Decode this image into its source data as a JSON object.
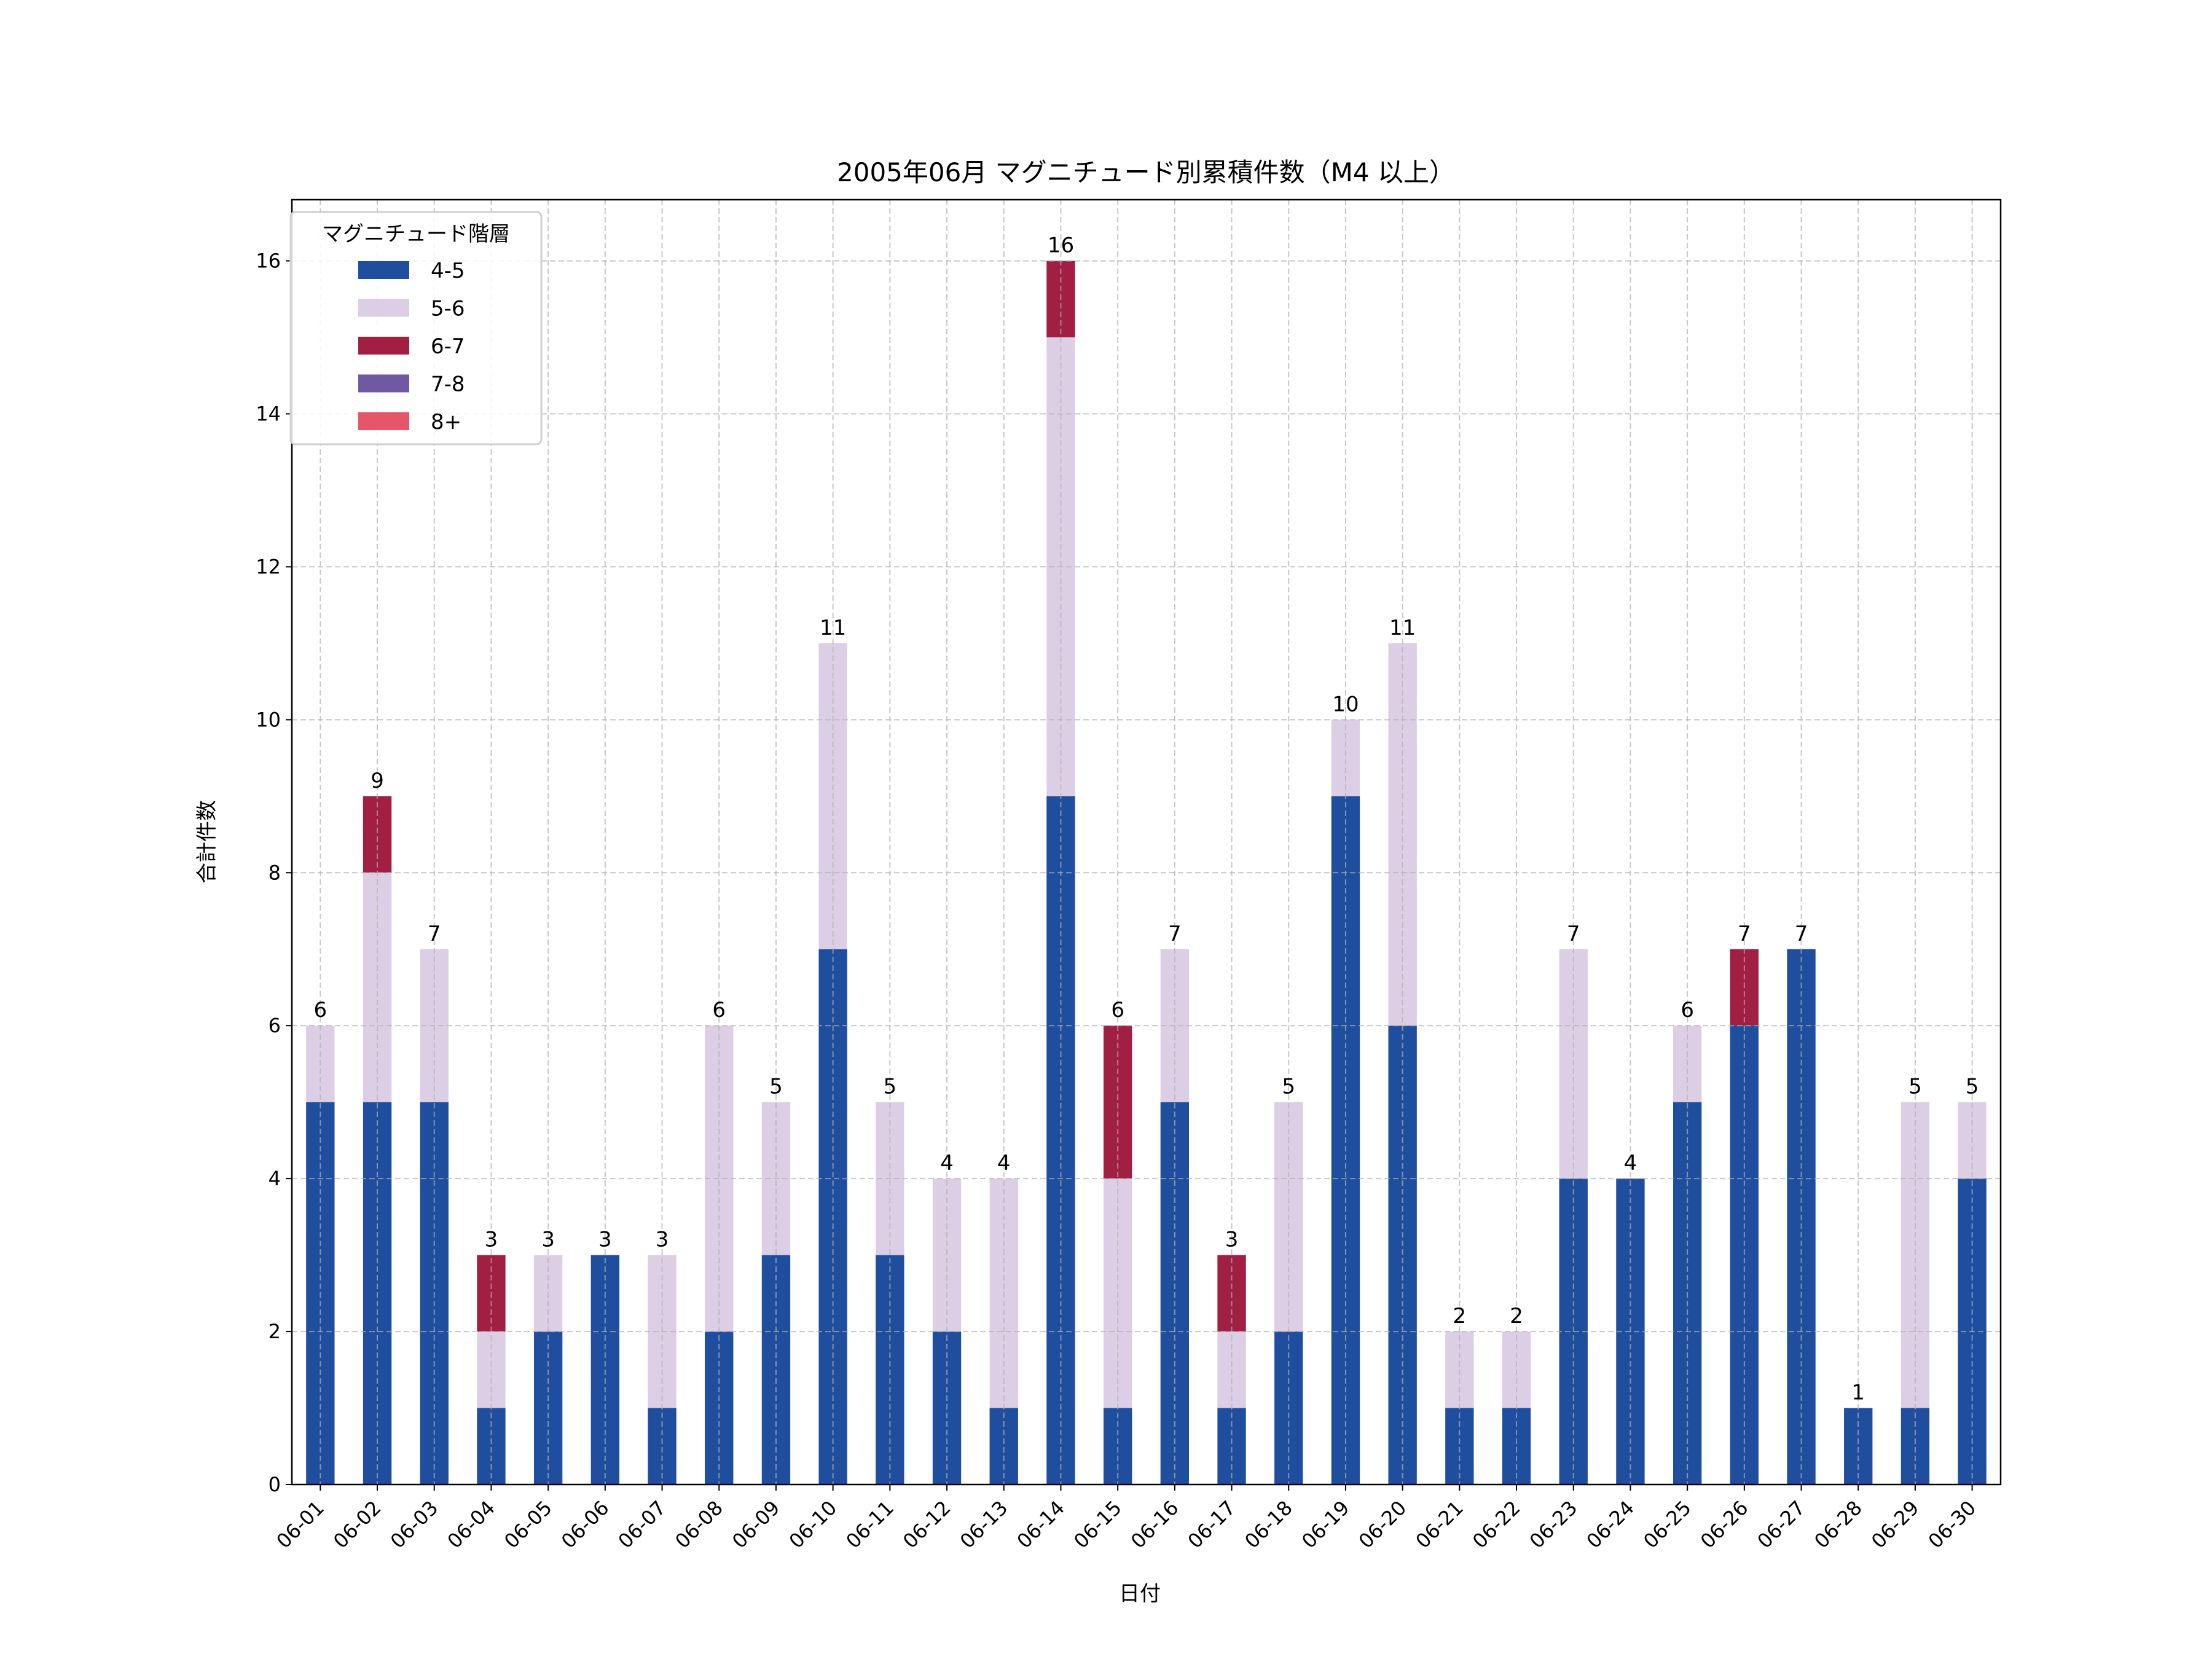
{
  "chart_data": {
    "type": "bar",
    "stacked": true,
    "title": "2005年06月 マグニチュード別累積件数（M4 以上）",
    "xlabel": "日付",
    "ylabel": "合計件数",
    "ylim": [
      0,
      16.8
    ],
    "yticks": [
      0,
      2,
      4,
      6,
      8,
      10,
      12,
      14,
      16
    ],
    "grid": true,
    "legend": {
      "title": "マグニチュード階層",
      "placement": "top-left"
    },
    "categories": [
      "06-01",
      "06-02",
      "06-03",
      "06-04",
      "06-05",
      "06-06",
      "06-07",
      "06-08",
      "06-09",
      "06-10",
      "06-11",
      "06-12",
      "06-13",
      "06-14",
      "06-15",
      "06-16",
      "06-17",
      "06-18",
      "06-19",
      "06-20",
      "06-21",
      "06-22",
      "06-23",
      "06-24",
      "06-25",
      "06-26",
      "06-27",
      "06-28",
      "06-29",
      "06-30"
    ],
    "series": [
      {
        "name": "4-5",
        "color": "#1f4e9f",
        "values": [
          5,
          5,
          5,
          1,
          2,
          3,
          1,
          2,
          3,
          7,
          3,
          2,
          1,
          9,
          1,
          5,
          1,
          2,
          9,
          6,
          1,
          1,
          4,
          4,
          5,
          6,
          7,
          1,
          1,
          4
        ]
      },
      {
        "name": "5-6",
        "color": "#dccfe5",
        "values": [
          1,
          3,
          2,
          1,
          1,
          0,
          2,
          4,
          2,
          4,
          2,
          2,
          3,
          6,
          3,
          2,
          1,
          3,
          1,
          5,
          1,
          1,
          3,
          0,
          1,
          0,
          0,
          0,
          4,
          1
        ]
      },
      {
        "name": "6-7",
        "color": "#a01f43",
        "values": [
          0,
          1,
          0,
          1,
          0,
          0,
          0,
          0,
          0,
          0,
          0,
          0,
          0,
          1,
          2,
          0,
          1,
          0,
          0,
          0,
          0,
          0,
          0,
          0,
          0,
          1,
          0,
          0,
          0,
          0
        ]
      },
      {
        "name": "7-8",
        "color": "#7059a2",
        "values": [
          0,
          0,
          0,
          0,
          0,
          0,
          0,
          0,
          0,
          0,
          0,
          0,
          0,
          0,
          0,
          0,
          0,
          0,
          0,
          0,
          0,
          0,
          0,
          0,
          0,
          0,
          0,
          0,
          0,
          0
        ]
      },
      {
        "name": "8+",
        "color": "#e85468",
        "values": [
          0,
          0,
          0,
          0,
          0,
          0,
          0,
          0,
          0,
          0,
          0,
          0,
          0,
          0,
          0,
          0,
          0,
          0,
          0,
          0,
          0,
          0,
          0,
          0,
          0,
          0,
          0,
          0,
          0,
          0
        ]
      }
    ],
    "totals": [
      6,
      9,
      7,
      3,
      3,
      3,
      3,
      6,
      5,
      11,
      5,
      4,
      4,
      16,
      6,
      7,
      3,
      5,
      10,
      11,
      2,
      2,
      7,
      4,
      6,
      7,
      7,
      1,
      5,
      5
    ]
  }
}
